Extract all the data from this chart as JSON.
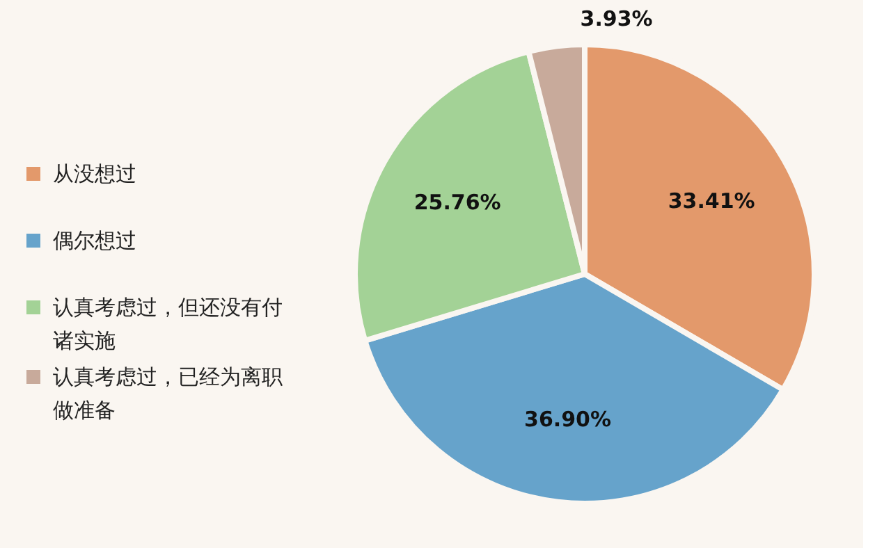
{
  "chart_data": {
    "type": "pie",
    "categories": [
      "从没想过",
      "偶尔想过",
      "认真考虑过，但还没有付诸实施",
      "认真考虑过，已经为离职做准备"
    ],
    "values": [
      33.41,
      36.9,
      25.76,
      3.93
    ],
    "colors": [
      "#e3996b",
      "#66a3cb",
      "#a3d296",
      "#c8aa9b"
    ],
    "value_labels": [
      "33.41%",
      "36.90%",
      "25.76%",
      "3.93%"
    ],
    "legend": "left"
  }
}
